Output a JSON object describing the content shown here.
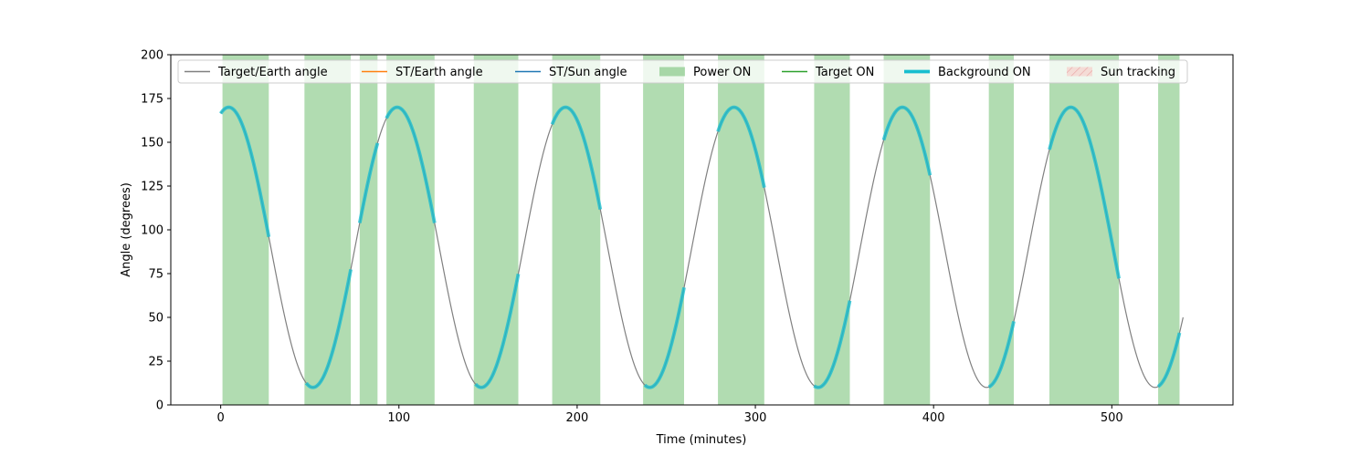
{
  "chart_data": {
    "type": "line",
    "title": "",
    "xlabel": "Time (minutes)",
    "ylabel": "Angle (degrees)",
    "xlim": [
      -28,
      568
    ],
    "ylim": [
      0,
      200
    ],
    "xticks": [
      0,
      100,
      200,
      300,
      400,
      500
    ],
    "yticks": [
      0,
      25,
      50,
      75,
      100,
      125,
      150,
      175,
      200
    ],
    "grid": false,
    "legend_position": "top, inside plot",
    "series": [
      {
        "name": "Target/Earth angle",
        "kind": "line",
        "color": "#808080",
        "model": {
          "min": 10,
          "max": 170,
          "period_min": 94.5,
          "first_peak_min": 4.5,
          "start_min": 0,
          "end_min": 540
        }
      },
      {
        "name": "ST/Earth angle",
        "kind": "line",
        "color": "#ff7f0e",
        "x": [],
        "y": []
      },
      {
        "name": "ST/Sun angle",
        "kind": "line",
        "color": "#1f77b4",
        "x": [],
        "y": []
      },
      {
        "name": "Power ON",
        "kind": "interval",
        "color": "#2ca02c",
        "intervals": [
          [
            1,
            27
          ],
          [
            47,
            73
          ],
          [
            78,
            88
          ],
          [
            93,
            120
          ],
          [
            142,
            167
          ],
          [
            186,
            213
          ],
          [
            237,
            260
          ],
          [
            279,
            305
          ],
          [
            333,
            353
          ],
          [
            372,
            398
          ],
          [
            431,
            445
          ],
          [
            465,
            504
          ],
          [
            526,
            538
          ]
        ]
      },
      {
        "name": "Target ON",
        "kind": "line",
        "color": "#2ca02c",
        "x": [],
        "y": []
      },
      {
        "name": "Background ON",
        "kind": "interval-line",
        "color": "#17becf",
        "intervals": [
          [
            0,
            27
          ],
          [
            48,
            73
          ],
          [
            78,
            88
          ],
          [
            93,
            120
          ],
          [
            143,
            167
          ],
          [
            186,
            213
          ],
          [
            238,
            260
          ],
          [
            279,
            305
          ],
          [
            333,
            353
          ],
          [
            372,
            398
          ],
          [
            431,
            445
          ],
          [
            465,
            504
          ],
          [
            526,
            538
          ]
        ]
      },
      {
        "name": "Sun tracking",
        "kind": "interval",
        "color": "#ffaaaa",
        "intervals": []
      }
    ]
  }
}
